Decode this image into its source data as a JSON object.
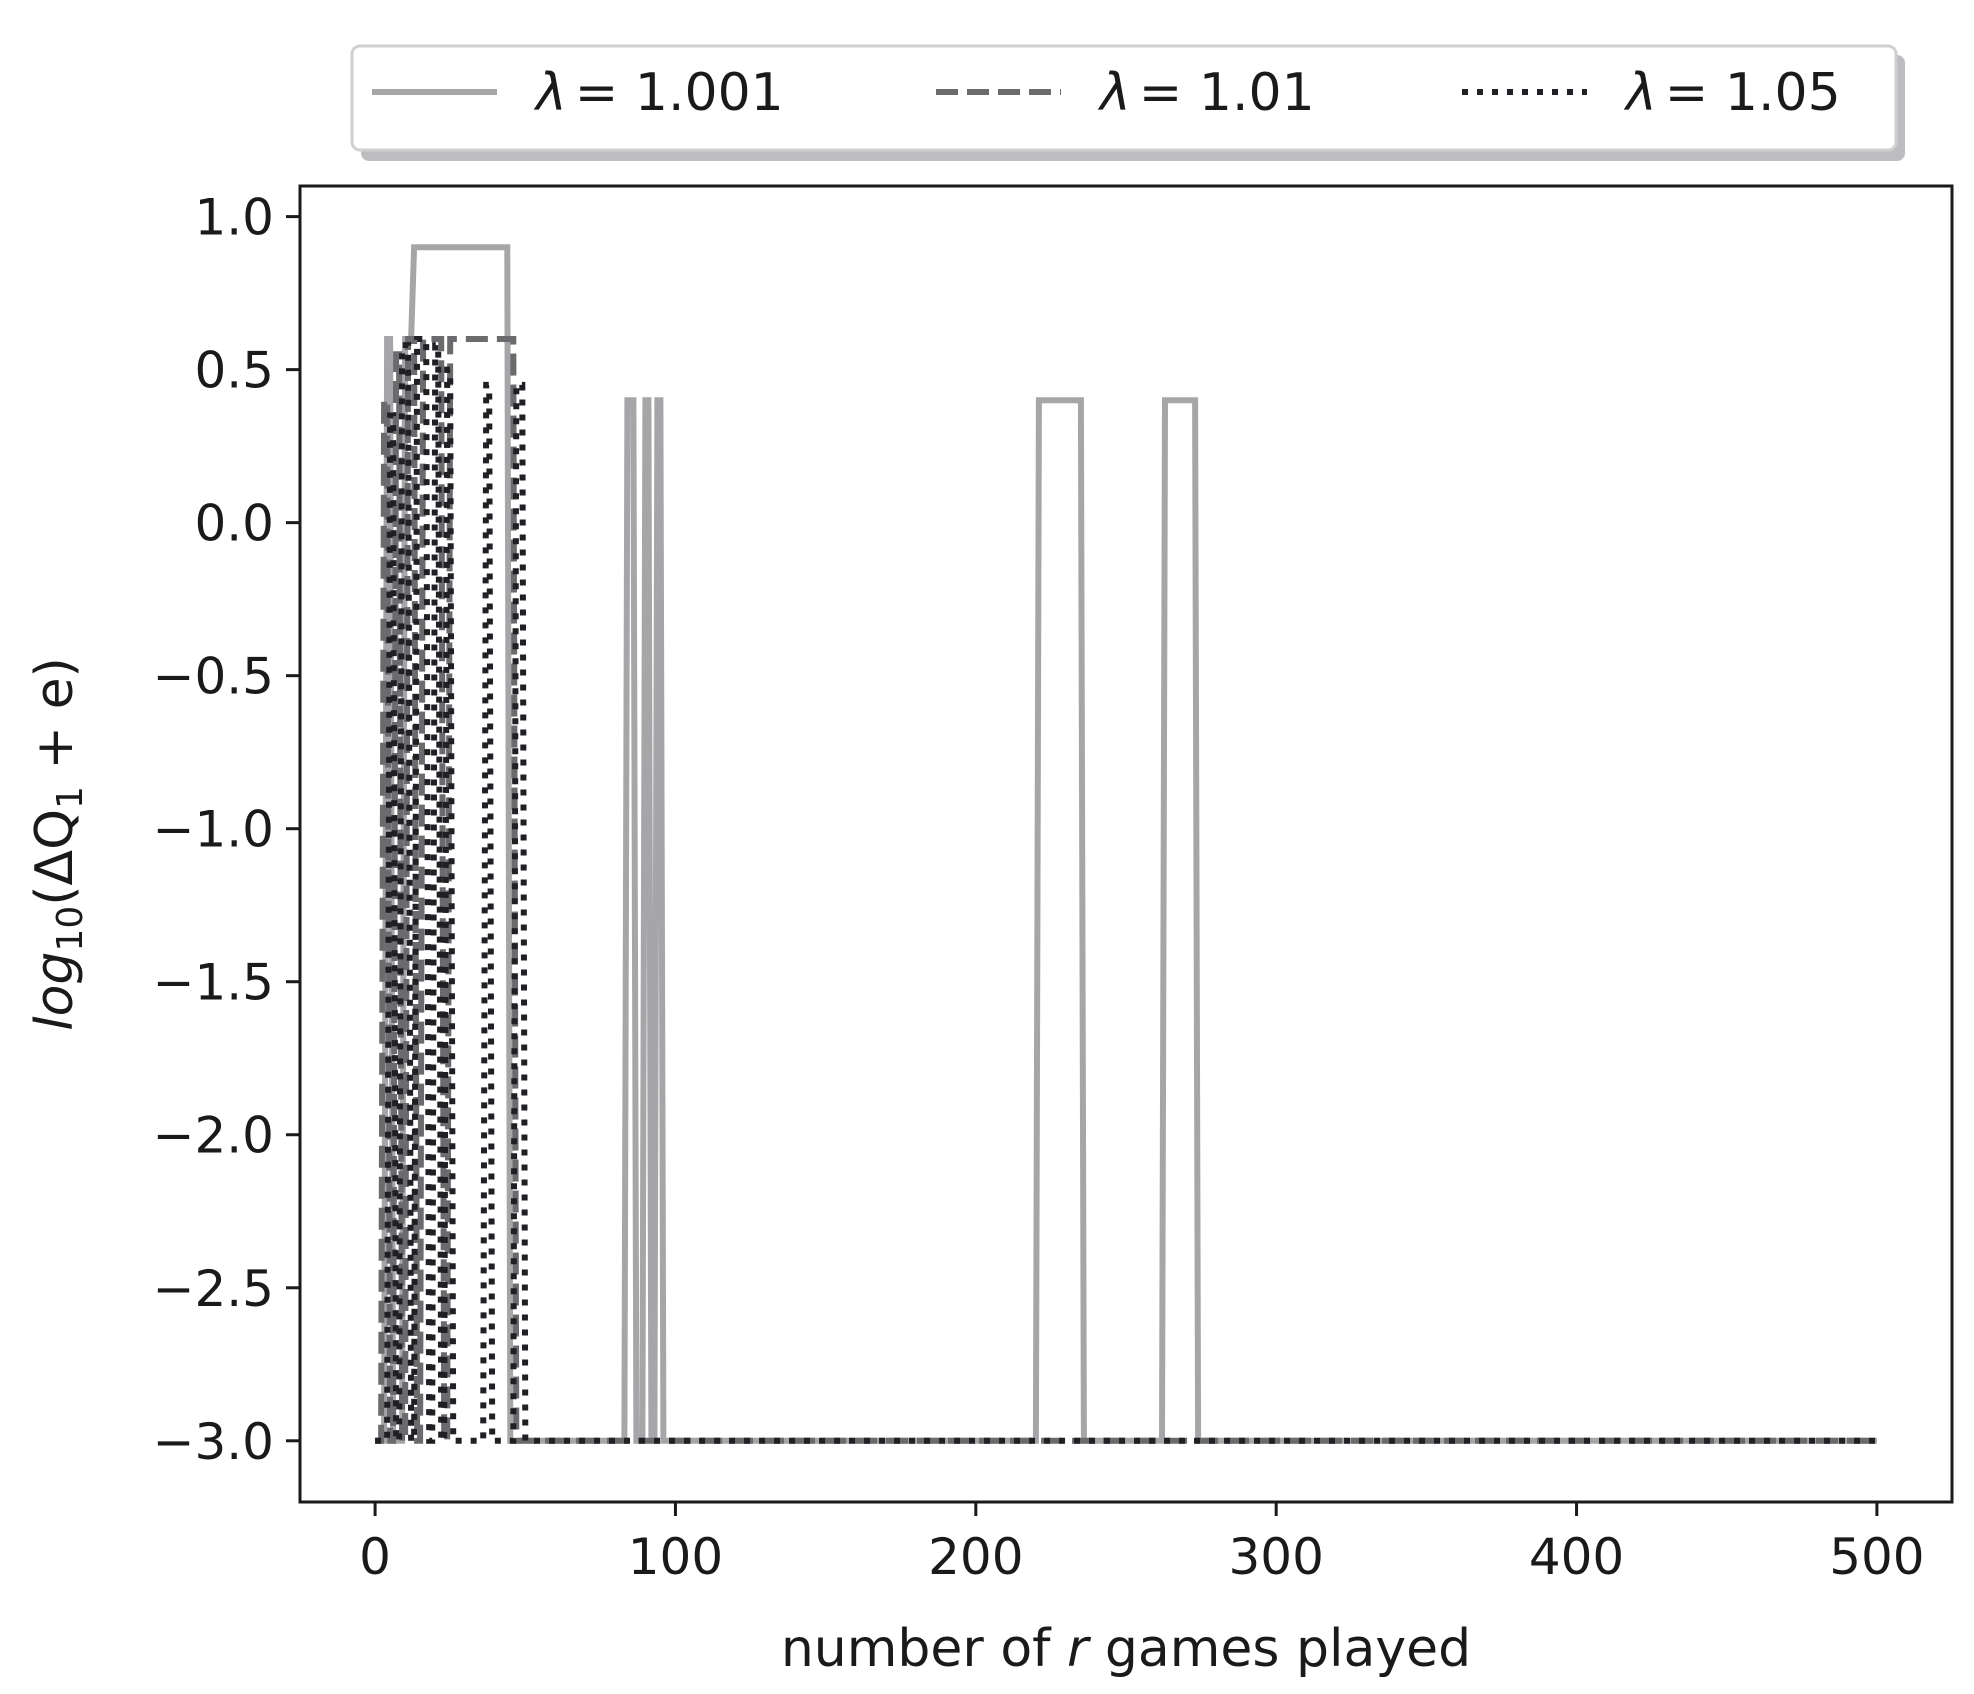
{
  "chart_data": {
    "type": "line",
    "title": "",
    "xlabel_parts": [
      "number of ",
      "r",
      " games played"
    ],
    "ylabel_parts": {
      "log": "log",
      "sub10": "10",
      "open": "(ΔQ",
      "sub1": "1",
      "close": " + e)"
    },
    "xlim": [
      -25,
      525
    ],
    "ylim": [
      -3.2,
      1.1
    ],
    "x_ticks": [
      0,
      100,
      200,
      300,
      400,
      500
    ],
    "x_tick_labels": [
      "0",
      "100",
      "200",
      "300",
      "400",
      "500"
    ],
    "y_ticks": [
      1.0,
      0.5,
      0.0,
      -0.5,
      -1.0,
      -1.5,
      -2.0,
      -2.5,
      -3.0
    ],
    "y_tick_labels": [
      "1.0",
      "0.5",
      "0.0",
      "−0.5",
      "−1.0",
      "−1.5",
      "−2.0",
      "−2.5",
      "−3.0"
    ],
    "legend_position": "top, above plot",
    "series": [
      {
        "name": "λ = 1.001",
        "label_lambda": "λ",
        "label_value": "= 1.001",
        "style": "solid",
        "color": "#a6a6a9",
        "points": [
          [
            0,
            -3
          ],
          [
            3,
            -3
          ],
          [
            4,
            0.6
          ],
          [
            5,
            0.6
          ],
          [
            6,
            -3
          ],
          [
            9,
            -3
          ],
          [
            10,
            0.6
          ],
          [
            12,
            0.6
          ],
          [
            13,
            0.9
          ],
          [
            44,
            0.9
          ],
          [
            45,
            -3
          ],
          [
            83,
            -3
          ],
          [
            84,
            0.4
          ],
          [
            86,
            0.4
          ],
          [
            87,
            -3
          ],
          [
            89,
            -3
          ],
          [
            90,
            0.4
          ],
          [
            91,
            0.4
          ],
          [
            92,
            -3
          ],
          [
            93,
            -3
          ],
          [
            94,
            0.4
          ],
          [
            95,
            0.4
          ],
          [
            96,
            -3
          ],
          [
            220,
            -3
          ],
          [
            221,
            0.4
          ],
          [
            235,
            0.4
          ],
          [
            236,
            -3
          ],
          [
            262,
            -3
          ],
          [
            263,
            0.4
          ],
          [
            273,
            0.4
          ],
          [
            274,
            -3
          ],
          [
            500,
            -3
          ]
        ]
      },
      {
        "name": "λ = 1.01",
        "label_lambda": "λ",
        "label_value": "= 1.01",
        "style": "dashed",
        "color": "#6b6b6e",
        "points": [
          [
            0,
            -3
          ],
          [
            2,
            -3
          ],
          [
            3,
            0.4
          ],
          [
            4,
            0.4
          ],
          [
            5,
            -3
          ],
          [
            6,
            -3
          ],
          [
            7,
            0.55
          ],
          [
            8,
            0.55
          ],
          [
            9,
            -3
          ],
          [
            10,
            -3
          ],
          [
            11,
            0.6
          ],
          [
            13,
            0.6
          ],
          [
            14,
            -3
          ],
          [
            15,
            -3
          ],
          [
            16,
            0.6
          ],
          [
            22,
            0.6
          ],
          [
            23,
            -3
          ],
          [
            24,
            -3
          ],
          [
            25,
            0.6
          ],
          [
            46,
            0.6
          ],
          [
            47,
            -3
          ],
          [
            500,
            -3
          ]
        ]
      },
      {
        "name": "λ = 1.05",
        "label_lambda": "λ",
        "label_value": "= 1.05",
        "style": "dotted",
        "color": "#1f1f24",
        "points": [
          [
            0,
            -3
          ],
          [
            4,
            -3
          ],
          [
            5,
            0.35
          ],
          [
            6,
            0.35
          ],
          [
            7,
            -3
          ],
          [
            8,
            -3
          ],
          [
            9,
            0.58
          ],
          [
            11,
            0.58
          ],
          [
            12,
            -3
          ],
          [
            13,
            -3
          ],
          [
            14,
            0.6
          ],
          [
            17,
            0.6
          ],
          [
            18,
            -3
          ],
          [
            19,
            -3
          ],
          [
            20,
            0.58
          ],
          [
            21,
            0.58
          ],
          [
            22,
            -3
          ],
          [
            23,
            -3
          ],
          [
            24,
            0.5
          ],
          [
            25,
            0.5
          ],
          [
            26,
            -3
          ],
          [
            36,
            -3
          ],
          [
            37,
            0.45
          ],
          [
            38,
            0.45
          ],
          [
            39,
            -3
          ],
          [
            46,
            -3
          ],
          [
            47,
            0.45
          ],
          [
            49,
            0.45
          ],
          [
            50,
            -3
          ],
          [
            500,
            -3
          ]
        ]
      }
    ]
  }
}
